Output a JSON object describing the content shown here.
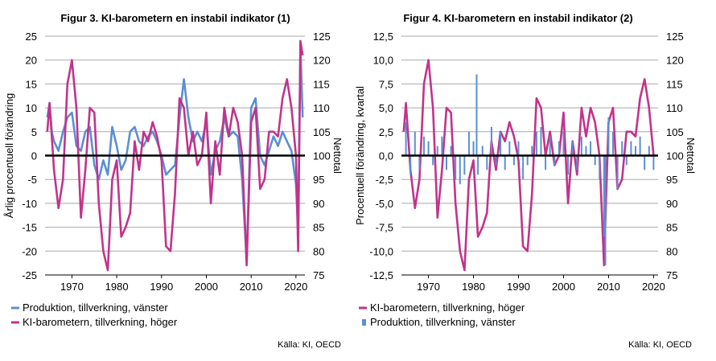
{
  "colors": {
    "production": "#5b8fd1",
    "barometer": "#c2338b",
    "grid": "#a9a9a9",
    "zero": "#000000"
  },
  "chart_data": [
    {
      "type": "line",
      "title": "Figur 3. KI-barometern en instabil indikator (1)",
      "ylabel_left": "Årlig procentuell förändring",
      "ylabel_right": "Nettotal",
      "ylim_left": [
        -25,
        25
      ],
      "ylim_right": [
        75,
        125
      ],
      "xlim": [
        1964,
        2022
      ],
      "yticks_left": [
        "25",
        "20",
        "15",
        "10",
        "5",
        "0",
        "-5",
        "-10",
        "-15",
        "-20",
        "-25"
      ],
      "yticks_right": [
        "125",
        "120",
        "115",
        "110",
        "105",
        "100",
        "95",
        "90",
        "85",
        "80",
        "75"
      ],
      "xticks": [
        "1970",
        "1980",
        "1990",
        "2000",
        "2010",
        "2020"
      ],
      "grid": true,
      "legend": [
        "Produktion, tillverkning, vänster",
        "KI-barometern, tillverkning, höger"
      ],
      "source": "Källa: KI, OECD",
      "series": [
        {
          "name": "Produktion, tillverkning, vänster",
          "axis": "left",
          "style": "line",
          "color_key": "production",
          "x": [
            1964.5,
            1965,
            1965.5,
            1966,
            1967,
            1968,
            1969,
            1970,
            1971,
            1972,
            1973,
            1974,
            1975,
            1976,
            1977,
            1978,
            1979,
            1980,
            1981,
            1982,
            1983,
            1984,
            1985,
            1986,
            1987,
            1988,
            1989,
            1990,
            1991,
            1992,
            1993,
            1994,
            1995,
            1996,
            1997,
            1998,
            1999,
            2000,
            2001,
            2002,
            2003,
            2004,
            2005,
            2006,
            2007,
            2008,
            2009,
            2010,
            2011,
            2012,
            2013,
            2014,
            2015,
            2016,
            2017,
            2018,
            2019,
            2020,
            2020.5,
            2021,
            2021.5
          ],
          "values": [
            8,
            11,
            5,
            3,
            1,
            5,
            8,
            9,
            2,
            1,
            5,
            6,
            -2,
            -5,
            -1,
            -4,
            6,
            2,
            -3,
            -1,
            5,
            6,
            3,
            2,
            4,
            5,
            3,
            0,
            -4,
            -3,
            -2,
            8,
            16,
            8,
            3,
            5,
            3,
            7,
            -4,
            1,
            3,
            8,
            4,
            5,
            4,
            -5,
            -22,
            10,
            12,
            0,
            -2,
            1,
            4,
            2,
            5,
            3,
            1,
            -6,
            -16,
            23,
            8
          ]
        },
        {
          "name": "KI-barometern, tillverkning, höger",
          "axis": "right",
          "style": "line",
          "color_key": "barometer",
          "x": [
            1964.5,
            1965,
            1966,
            1967,
            1968,
            1969,
            1970,
            1971,
            1972,
            1973,
            1974,
            1975,
            1976,
            1977,
            1978,
            1979,
            1980,
            1981,
            1982,
            1983,
            1984,
            1985,
            1986,
            1987,
            1988,
            1989,
            1990,
            1991,
            1992,
            1993,
            1994,
            1995,
            1996,
            1997,
            1998,
            1999,
            2000,
            2001,
            2002,
            2003,
            2004,
            2005,
            2006,
            2007,
            2008,
            2009,
            2010,
            2011,
            2012,
            2013,
            2014,
            2015,
            2016,
            2017,
            2018,
            2019,
            2020,
            2020.5,
            2021,
            2021.5
          ],
          "values": [
            105,
            111,
            97,
            89,
            95,
            115,
            120,
            110,
            87,
            97,
            110,
            109,
            90,
            80,
            76,
            95,
            99,
            83,
            85,
            88,
            103,
            97,
            105,
            103,
            107,
            104,
            99,
            81,
            80,
            92,
            112,
            110,
            100,
            105,
            98,
            100,
            109,
            90,
            103,
            96,
            110,
            104,
            110,
            107,
            100,
            77,
            107,
            110,
            93,
            95,
            105,
            105,
            104,
            112,
            116,
            110,
            100,
            80,
            124,
            121
          ]
        }
      ]
    },
    {
      "type": "line",
      "title": "Figur 4. KI-barometern en instabil indikator (2)",
      "ylabel_left": "Procentuell förändring, kvartal",
      "ylabel_right": "Nettotal",
      "ylim_left": [
        -12.5,
        12.5
      ],
      "ylim_right": [
        75,
        125
      ],
      "xlim": [
        1964,
        2021
      ],
      "yticks_left": [
        "12,5",
        "10,0",
        "7,5",
        "5,0",
        "2,5",
        "0,0",
        "-2,5",
        "-5,0",
        "-7,5",
        "-10,0",
        "-12,5"
      ],
      "yticks_right": [
        "125",
        "120",
        "115",
        "110",
        "105",
        "100",
        "95",
        "90",
        "85",
        "80",
        "75"
      ],
      "xticks": [
        "1970",
        "1980",
        "1990",
        "2000",
        "2010",
        "2020"
      ],
      "grid": true,
      "legend": [
        "KI-barometern, tillverkning, höger",
        "Produktion, tillverkning, vänster"
      ],
      "source": "Källa: KI, OECD",
      "series": [
        {
          "name": "KI-barometern, tillverkning, höger",
          "axis": "right",
          "style": "line",
          "color_key": "barometer",
          "x": [
            1964.5,
            1965,
            1966,
            1967,
            1968,
            1969,
            1970,
            1971,
            1972,
            1973,
            1974,
            1975,
            1976,
            1977,
            1978,
            1979,
            1980,
            1981,
            1982,
            1983,
            1984,
            1985,
            1986,
            1987,
            1988,
            1989,
            1990,
            1991,
            1992,
            1993,
            1994,
            1995,
            1996,
            1997,
            1998,
            1999,
            2000,
            2001,
            2002,
            2003,
            2004,
            2005,
            2006,
            2007,
            2008,
            2009,
            2010,
            2011,
            2012,
            2013,
            2014,
            2015,
            2016,
            2017,
            2018,
            2019,
            2020
          ],
          "values": [
            105,
            111,
            97,
            89,
            95,
            115,
            120,
            110,
            87,
            97,
            110,
            109,
            90,
            80,
            76,
            95,
            99,
            83,
            85,
            88,
            103,
            97,
            105,
            103,
            107,
            104,
            99,
            81,
            80,
            92,
            112,
            110,
            100,
            105,
            98,
            100,
            109,
            90,
            103,
            96,
            110,
            104,
            110,
            107,
            100,
            77,
            107,
            110,
            93,
            95,
            105,
            105,
            104,
            112,
            116,
            110,
            100
          ]
        },
        {
          "name": "Produktion, tillverkning, vänster",
          "axis": "left",
          "style": "bar",
          "color_key": "production",
          "x": [
            1965,
            1966,
            1967,
            1968,
            1969,
            1970,
            1971,
            1972,
            1973,
            1974,
            1975,
            1976,
            1977,
            1978,
            1979,
            1980,
            1980.7,
            1981,
            1982,
            1983,
            1984,
            1985,
            1986,
            1987,
            1988,
            1989,
            1990,
            1991,
            1992,
            1993,
            1994,
            1995,
            1996,
            1997,
            1998,
            1999,
            2000,
            2001,
            2002,
            2003,
            2004,
            2005,
            2006,
            2007,
            2008,
            2009,
            2009.3,
            2010,
            2011,
            2012,
            2013,
            2014,
            2015,
            2016,
            2017,
            2018,
            2019,
            2020
          ],
          "values": [
            3.5,
            -2.0,
            2.5,
            -1.5,
            2.0,
            1.5,
            -1.0,
            1.0,
            2.0,
            -1.5,
            1.0,
            -2.5,
            -3.0,
            -2.0,
            2.5,
            1.5,
            8.5,
            -2.0,
            1.0,
            -1.5,
            3.0,
            -1.0,
            2.5,
            -1.5,
            1.5,
            -1.0,
            1.5,
            -2.5,
            -1.0,
            1.0,
            2.5,
            3.0,
            -1.5,
            2.0,
            -1.0,
            1.5,
            2.5,
            -2.0,
            1.5,
            -1.5,
            2.0,
            1.0,
            1.5,
            -1.0,
            -2.5,
            -8.5,
            -11.5,
            4.0,
            2.5,
            -3.5,
            1.5,
            -1.0,
            1.5,
            1.0,
            2.0,
            -1.5,
            1.0,
            -1.5
          ]
        }
      ]
    }
  ]
}
